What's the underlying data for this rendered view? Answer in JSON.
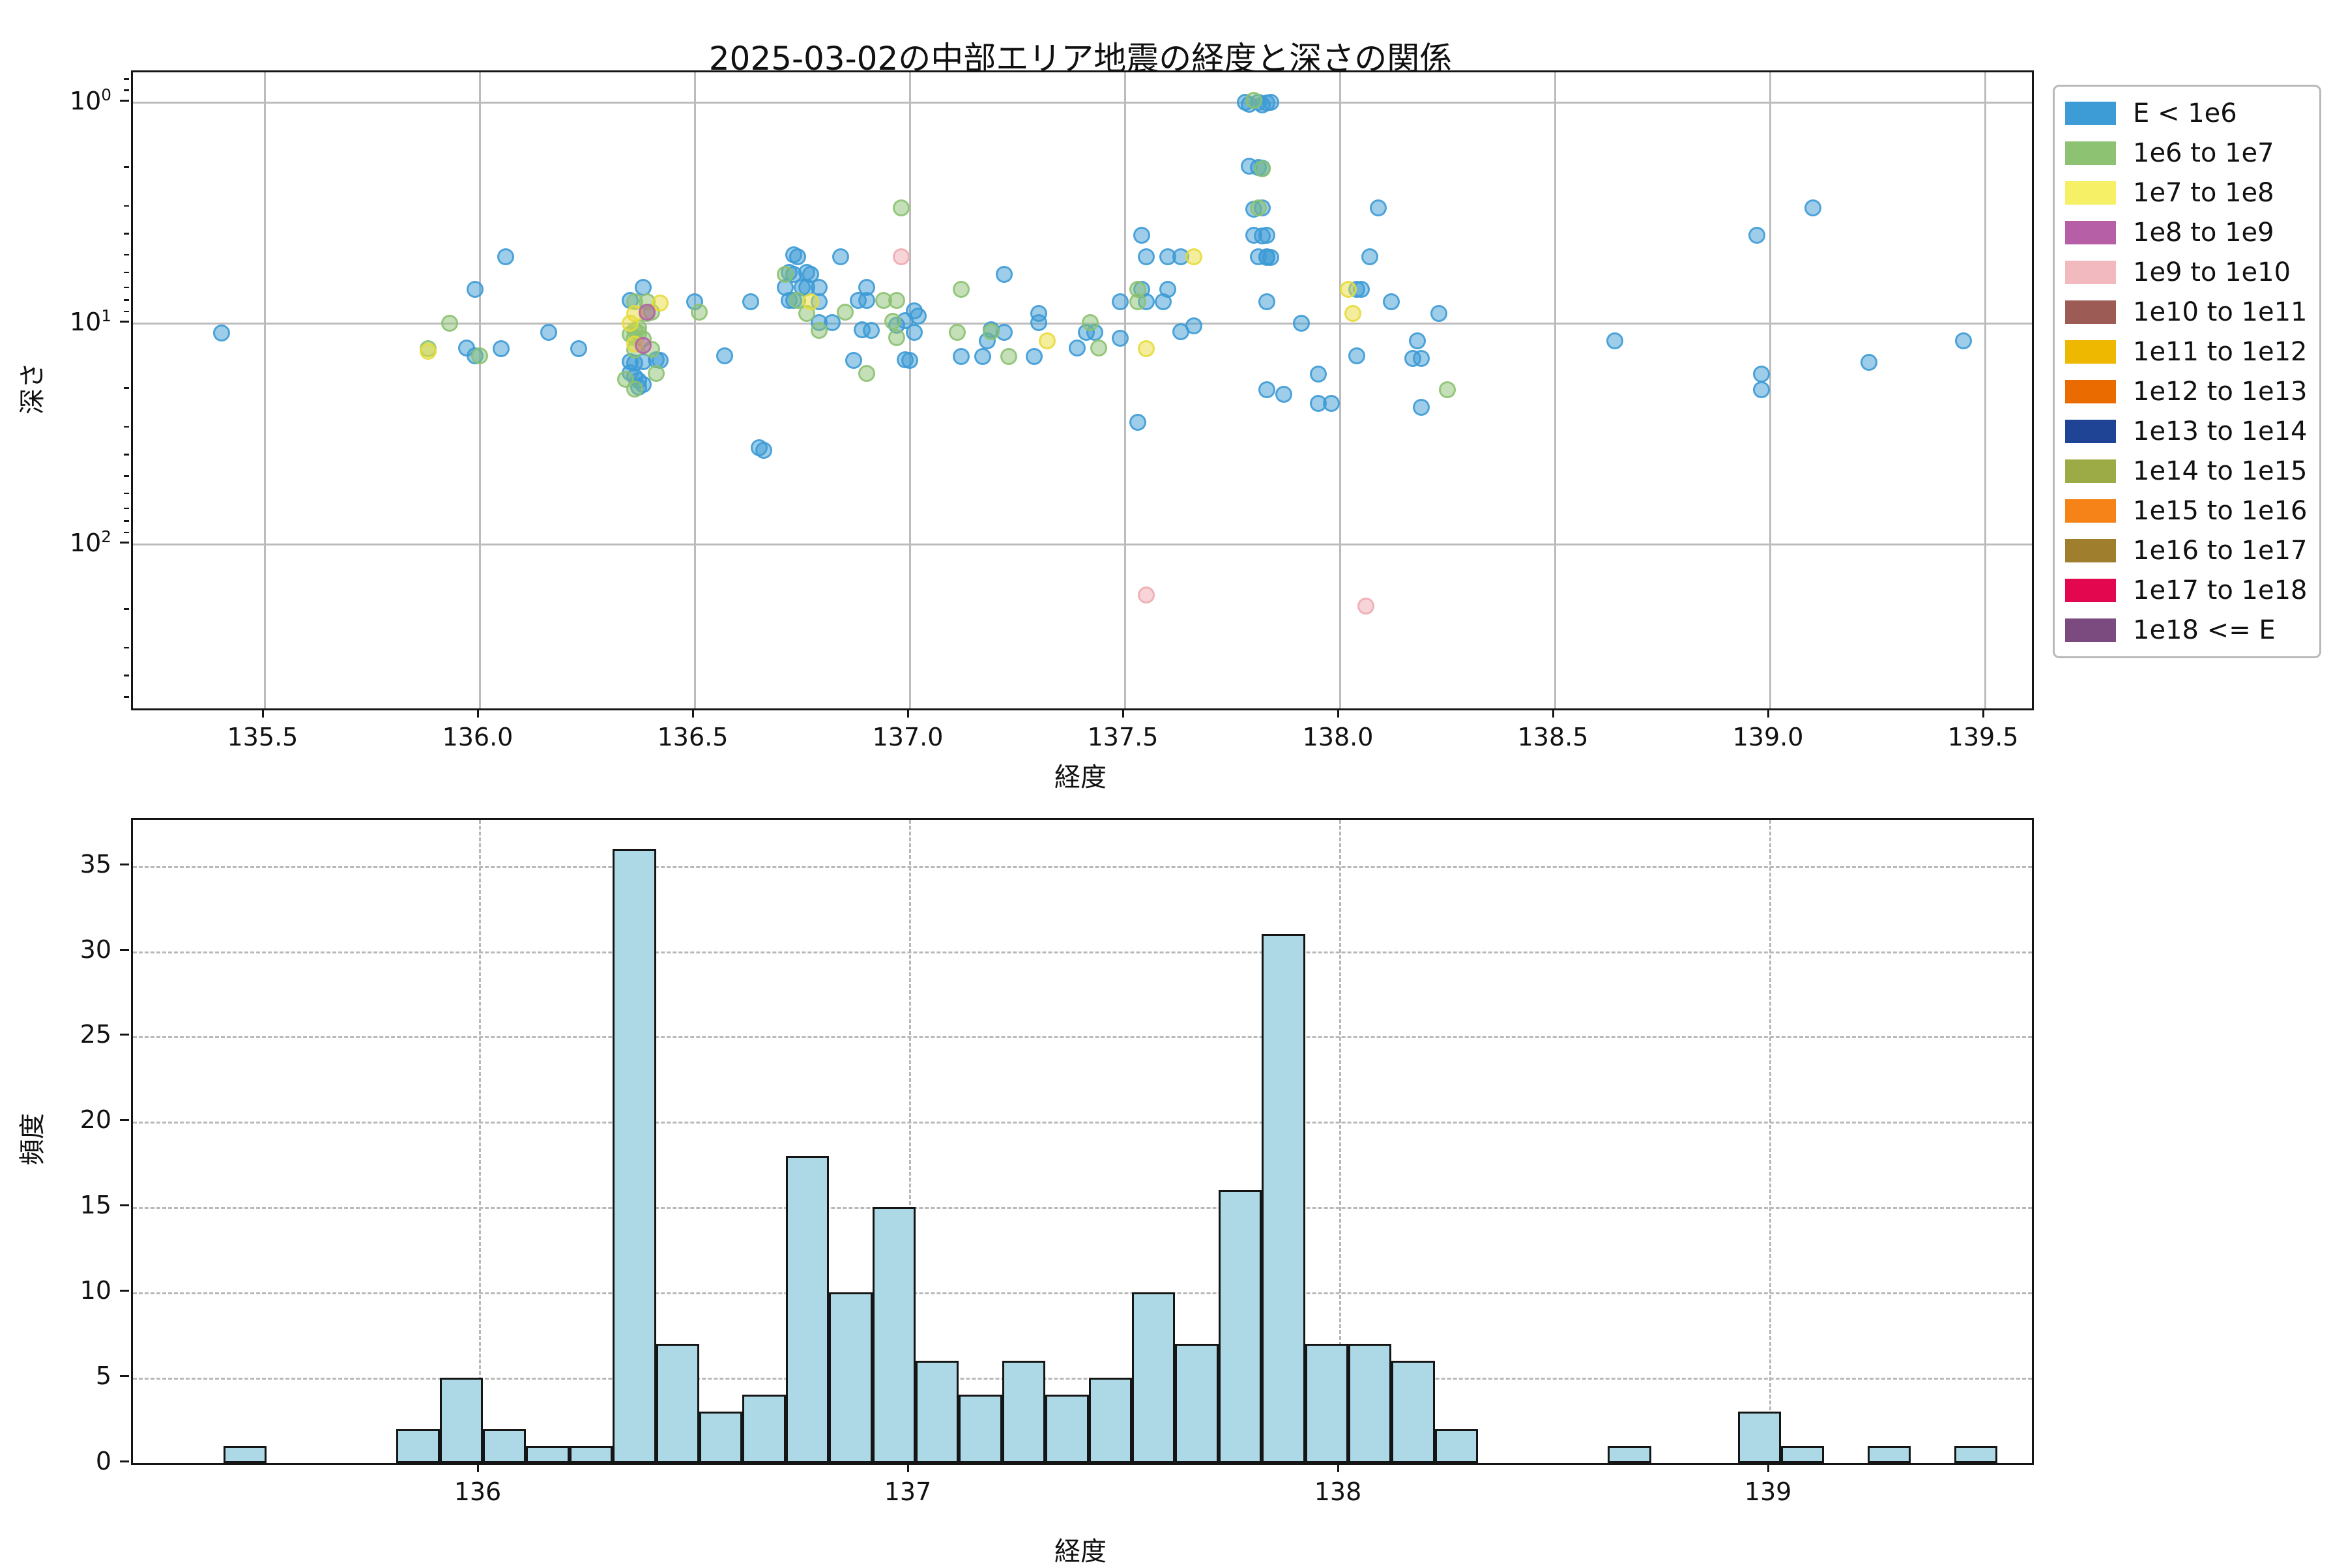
{
  "title": "2025-03-02の中部エリア地震の経度と深さの関係",
  "legend": {
    "items": [
      {
        "label": "E < 1e6",
        "color": "#3D9BD5"
      },
      {
        "label": "1e6 to 1e7",
        "color": "#8CC271"
      },
      {
        "label": "1e7 to 1e8",
        "color": "#F5F065"
      },
      {
        "label": "1e8 to 1e9",
        "color": "#B75FA6"
      },
      {
        "label": "1e9 to 1e10",
        "color": "#F2B9BE"
      },
      {
        "label": "1e10 to 1e11",
        "color": "#9D5B56"
      },
      {
        "label": "1e11 to 1e12",
        "color": "#EFB800"
      },
      {
        "label": "1e12 to 1e13",
        "color": "#EA6B00"
      },
      {
        "label": "1e13 to 1e14",
        "color": "#1F4496"
      },
      {
        "label": "1e14 to 1e15",
        "color": "#9DAB46"
      },
      {
        "label": "1e15 to 1e16",
        "color": "#F58318"
      },
      {
        "label": "1e16 to 1e17",
        "color": "#9F7E2E"
      },
      {
        "label": "1e17 to 1e18",
        "color": "#E3074F"
      },
      {
        "label": "1e18 <= E",
        "color": "#7B4B7F"
      }
    ]
  },
  "chart_data": [
    {
      "type": "scatter",
      "title": "2025-03-02の中部エリア地震の経度と深さの関係",
      "xlabel": "経度",
      "ylabel": "深さ",
      "xlim": [
        135.194,
        139.609
      ],
      "xticks": [
        135.5,
        136.0,
        136.5,
        137.0,
        137.5,
        138.0,
        138.5,
        139.0,
        139.5
      ],
      "xtick_labels": [
        "135.5",
        "136.0",
        "136.5",
        "137.0",
        "137.5",
        "138.0",
        "138.5",
        "139.0",
        "139.5"
      ],
      "y_scale": "log",
      "y_inverted": true,
      "ylim_exp": [
        -0.1357,
        2.743
      ],
      "ytick_exps": [
        0,
        1,
        2
      ],
      "grid": true,
      "legend_position": "outside-right",
      "series": [
        {
          "name": "E < 1e6",
          "color": "#3D9BD5",
          "points": [
            [
              135.4,
              11.1
            ],
            [
              135.99,
              7.0
            ],
            [
              136.06,
              5.0
            ],
            [
              135.97,
              12.9
            ],
            [
              135.99,
              14.0
            ],
            [
              136.05,
              13.0
            ],
            [
              136.16,
              11.0
            ],
            [
              136.23,
              13.0
            ],
            [
              136.38,
              6.9
            ],
            [
              136.35,
              7.9
            ],
            [
              136.41,
              14.6
            ],
            [
              136.42,
              14.7
            ],
            [
              136.35,
              14.9
            ],
            [
              136.36,
              15.1
            ],
            [
              136.38,
              14.9
            ],
            [
              136.36,
              17.4
            ],
            [
              136.37,
              18.2
            ],
            [
              136.38,
              18.9
            ],
            [
              136.35,
              16.7
            ],
            [
              136.37,
              19.4
            ],
            [
              136.5,
              8.0
            ],
            [
              136.57,
              14.0
            ],
            [
              136.63,
              8.0
            ],
            [
              136.65,
              36.5
            ],
            [
              136.66,
              37.5
            ],
            [
              136.73,
              4.9
            ],
            [
              136.74,
              5.0
            ],
            [
              136.72,
              5.9
            ],
            [
              136.73,
              6.0
            ],
            [
              136.76,
              5.9
            ],
            [
              136.77,
              6.0
            ],
            [
              136.71,
              6.9
            ],
            [
              136.75,
              6.9
            ],
            [
              136.76,
              6.9
            ],
            [
              136.79,
              6.9
            ],
            [
              136.72,
              7.9
            ],
            [
              136.73,
              7.9
            ],
            [
              136.79,
              8.0
            ],
            [
              136.79,
              9.9
            ],
            [
              136.82,
              9.9
            ],
            [
              136.84,
              5.0
            ],
            [
              136.88,
              7.9
            ],
            [
              136.9,
              7.9
            ],
            [
              136.9,
              6.9
            ],
            [
              136.89,
              10.7
            ],
            [
              136.91,
              10.8
            ],
            [
              136.87,
              14.7
            ],
            [
              136.99,
              9.7
            ],
            [
              136.97,
              10.2
            ],
            [
              136.99,
              14.6
            ],
            [
              137.0,
              14.7
            ],
            [
              137.01,
              8.8
            ],
            [
              137.02,
              9.3
            ],
            [
              137.01,
              11.0
            ],
            [
              137.12,
              14.1
            ],
            [
              137.17,
              14.1
            ],
            [
              137.18,
              12.0
            ],
            [
              137.19,
              10.7
            ],
            [
              137.22,
              6.0
            ],
            [
              137.22,
              11.0
            ],
            [
              137.29,
              14.1
            ],
            [
              137.3,
              9.0
            ],
            [
              137.3,
              9.9
            ],
            [
              137.39,
              12.9
            ],
            [
              137.41,
              11.0
            ],
            [
              137.43,
              11.0
            ],
            [
              137.49,
              11.7
            ],
            [
              137.49,
              8.0
            ],
            [
              137.54,
              7.0
            ],
            [
              137.55,
              8.0
            ],
            [
              137.59,
              8.0
            ],
            [
              137.54,
              4.0
            ],
            [
              137.55,
              5.0
            ],
            [
              137.6,
              5.0
            ],
            [
              137.63,
              5.0
            ],
            [
              137.6,
              7.0
            ],
            [
              137.63,
              10.9
            ],
            [
              137.66,
              10.3
            ],
            [
              137.53,
              28.0
            ],
            [
              137.78,
              1.0
            ],
            [
              137.79,
              1.02
            ],
            [
              137.81,
              1.0
            ],
            [
              137.82,
              1.03
            ],
            [
              137.83,
              1.01
            ],
            [
              137.84,
              1.0
            ],
            [
              137.79,
              1.95
            ],
            [
              137.81,
              1.97
            ],
            [
              137.82,
              1.98
            ],
            [
              137.8,
              3.05
            ],
            [
              137.82,
              3.0
            ],
            [
              137.8,
              4.0
            ],
            [
              137.83,
              4.0
            ],
            [
              137.82,
              4.02
            ],
            [
              137.81,
              5.0
            ],
            [
              137.83,
              5.0
            ],
            [
              137.84,
              5.05
            ],
            [
              137.83,
              5.02
            ],
            [
              137.83,
              8.0
            ],
            [
              137.91,
              10.0
            ],
            [
              137.83,
              20.0
            ],
            [
              137.87,
              21.0
            ],
            [
              137.95,
              17.0
            ],
            [
              137.95,
              23.0
            ],
            [
              137.98,
              23.0
            ],
            [
              138.04,
              7.0
            ],
            [
              138.05,
              7.0
            ],
            [
              138.07,
              5.0
            ],
            [
              138.09,
              3.0
            ],
            [
              138.12,
              8.0
            ],
            [
              138.18,
              12.0
            ],
            [
              138.04,
              14.0
            ],
            [
              138.17,
              14.4
            ],
            [
              138.19,
              14.4
            ],
            [
              138.19,
              24.0
            ],
            [
              138.23,
              9.0
            ],
            [
              138.64,
              12.0
            ],
            [
              138.97,
              4.0
            ],
            [
              138.98,
              17.0
            ],
            [
              138.98,
              20.0
            ],
            [
              139.1,
              3.0
            ],
            [
              139.23,
              15.0
            ],
            [
              139.45,
              12.0
            ]
          ]
        },
        {
          "name": "1e6 to 1e7",
          "color": "#8CC271",
          "points": [
            [
              135.88,
              13.0
            ],
            [
              135.93,
              10.0
            ],
            [
              136.0,
              14.0
            ],
            [
              136.36,
              8.0
            ],
            [
              136.39,
              8.0
            ],
            [
              136.4,
              8.9
            ],
            [
              136.39,
              9.0
            ],
            [
              136.36,
              10.8
            ],
            [
              136.37,
              10.5
            ],
            [
              136.36,
              11.6
            ],
            [
              136.38,
              11.8
            ],
            [
              136.35,
              11.2
            ],
            [
              136.37,
              11.1
            ],
            [
              136.36,
              13.2
            ],
            [
              136.4,
              13.1
            ],
            [
              136.34,
              17.9
            ],
            [
              136.41,
              16.9
            ],
            [
              136.36,
              19.8
            ],
            [
              136.51,
              8.9
            ],
            [
              136.71,
              6.0
            ],
            [
              136.74,
              7.9
            ],
            [
              136.76,
              9.0
            ],
            [
              136.79,
              10.8
            ],
            [
              136.85,
              8.9
            ],
            [
              136.9,
              16.9
            ],
            [
              136.94,
              7.9
            ],
            [
              136.97,
              7.9
            ],
            [
              136.96,
              9.8
            ],
            [
              136.97,
              11.6
            ],
            [
              136.98,
              3.0
            ],
            [
              137.11,
              11.0
            ],
            [
              137.12,
              7.0
            ],
            [
              137.19,
              10.9
            ],
            [
              137.23,
              14.1
            ],
            [
              137.42,
              9.9
            ],
            [
              137.44,
              12.9
            ],
            [
              137.53,
              7.0
            ],
            [
              137.53,
              8.0
            ],
            [
              137.8,
              0.98
            ],
            [
              137.82,
              2.0
            ],
            [
              137.81,
              3.0
            ],
            [
              138.25,
              20.0
            ]
          ]
        },
        {
          "name": "1e7 to 1e8",
          "color": "#E8DC3C",
          "points": [
            [
              135.88,
              13.4
            ],
            [
              136.42,
              8.1
            ],
            [
              136.36,
              9.0
            ],
            [
              136.35,
              10.0
            ],
            [
              136.36,
              12.4
            ],
            [
              136.77,
              8.0
            ],
            [
              137.32,
              12.0
            ],
            [
              137.66,
              5.0
            ],
            [
              137.55,
              13.0
            ],
            [
              138.02,
              7.0
            ],
            [
              138.03,
              9.0
            ]
          ]
        },
        {
          "name": "1e8 to 1e9",
          "color": "#B75FA6",
          "points": [
            [
              136.39,
              8.9
            ],
            [
              136.38,
              12.6
            ]
          ]
        },
        {
          "name": "1e9 to 1e10",
          "color": "#EFAAB2",
          "points": [
            [
              136.98,
              5.0
            ],
            [
              137.55,
              170
            ],
            [
              138.06,
              190
            ]
          ]
        }
      ]
    },
    {
      "type": "bar",
      "xlabel": "経度",
      "ylabel": "頻度",
      "xlim": [
        135.194,
        139.609
      ],
      "xticks": [
        136,
        137,
        138,
        139
      ],
      "xtick_labels": [
        "136",
        "137",
        "138",
        "139"
      ],
      "ylim": [
        0,
        37.7
      ],
      "yticks": [
        0,
        5,
        10,
        15,
        20,
        25,
        30,
        35
      ],
      "ytick_labels": [
        "0",
        "5",
        "10",
        "15",
        "20",
        "25",
        "30",
        "35"
      ],
      "grid": "dashed-horizontal",
      "bar_color": "#ADD8E6",
      "bar_edge_color": "#151515",
      "bin_start": 135.404,
      "bin_width": 0.1006,
      "counts": [
        1,
        0,
        0,
        0,
        2,
        5,
        2,
        1,
        1,
        36,
        7,
        3,
        4,
        18,
        10,
        15,
        6,
        4,
        6,
        4,
        5,
        10,
        7,
        16,
        31,
        7,
        7,
        6,
        2,
        0,
        0,
        0,
        1,
        0,
        0,
        3,
        1,
        0,
        1,
        0,
        1
      ]
    }
  ]
}
